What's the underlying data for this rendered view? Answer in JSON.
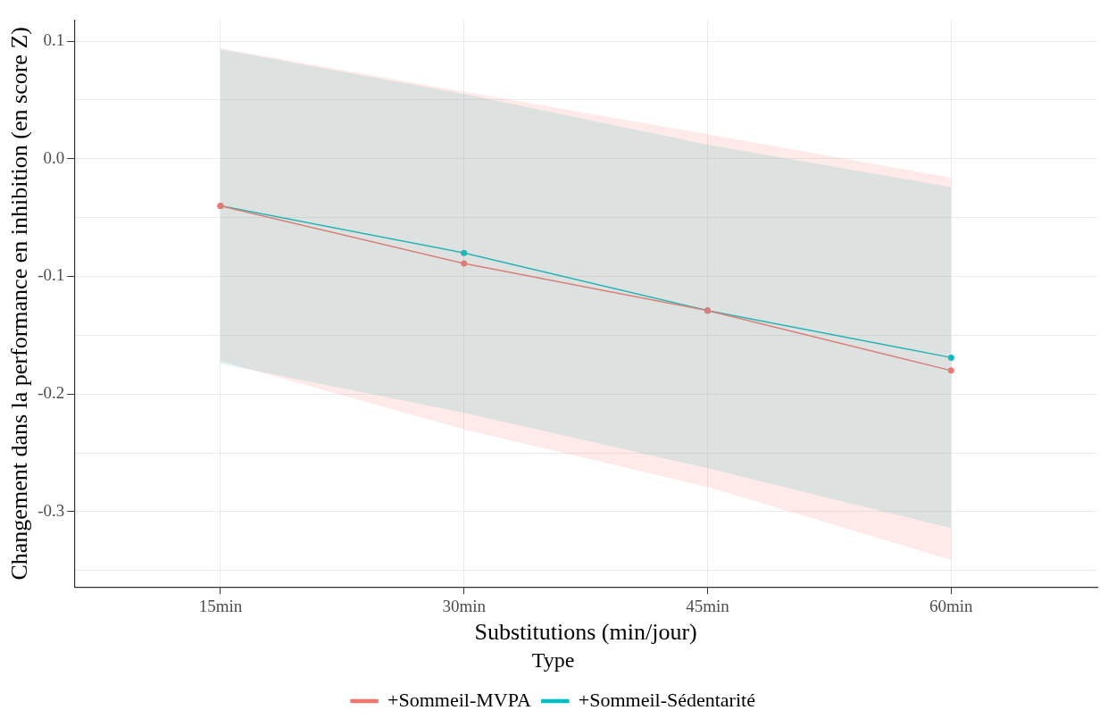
{
  "chart_data": {
    "type": "line",
    "xlabel": "Substitutions (min/jour)",
    "ylabel": "Changement dans la performance en inhibition (en score Z)",
    "legend_title": "Type",
    "legend": "bottom",
    "grid": true,
    "marker": "circle",
    "line_style": "solid",
    "x": [
      15,
      30,
      45,
      60
    ],
    "xlim": [
      6,
      69
    ],
    "xticks": [
      {
        "value": 15,
        "label": "15min"
      },
      {
        "value": 30,
        "label": "30min"
      },
      {
        "value": 45,
        "label": "45min"
      },
      {
        "value": 60,
        "label": "60min"
      }
    ],
    "ylim": [
      -0.364,
      0.118
    ],
    "yticks": [
      {
        "value": -0.35,
        "label": null
      },
      {
        "value": -0.3,
        "label": "-0.3"
      },
      {
        "value": -0.25,
        "label": null
      },
      {
        "value": -0.2,
        "label": "-0.2"
      },
      {
        "value": -0.15,
        "label": null
      },
      {
        "value": -0.1,
        "label": "-0.1"
      },
      {
        "value": -0.05,
        "label": null
      },
      {
        "value": 0,
        "label": "0.0"
      },
      {
        "value": 0.05,
        "label": null
      },
      {
        "value": 0.1,
        "label": "0.1"
      }
    ],
    "series": [
      {
        "name": "+Sommeil-MVPA",
        "color": "#f8766d",
        "values": [
          -0.04,
          -0.089,
          -0.129,
          -0.18
        ],
        "lower": [
          -0.172,
          -0.23,
          -0.279,
          -0.341
        ],
        "upper": [
          0.094,
          0.057,
          0.021,
          -0.016
        ]
      },
      {
        "name": "+Sommeil-Sédentarité",
        "color": "#00bfc4",
        "values": [
          -0.04,
          -0.08,
          -0.129,
          -0.169
        ],
        "lower": [
          -0.174,
          -0.216,
          -0.263,
          -0.314
        ],
        "upper": [
          0.093,
          0.055,
          0.012,
          -0.024
        ]
      }
    ]
  }
}
